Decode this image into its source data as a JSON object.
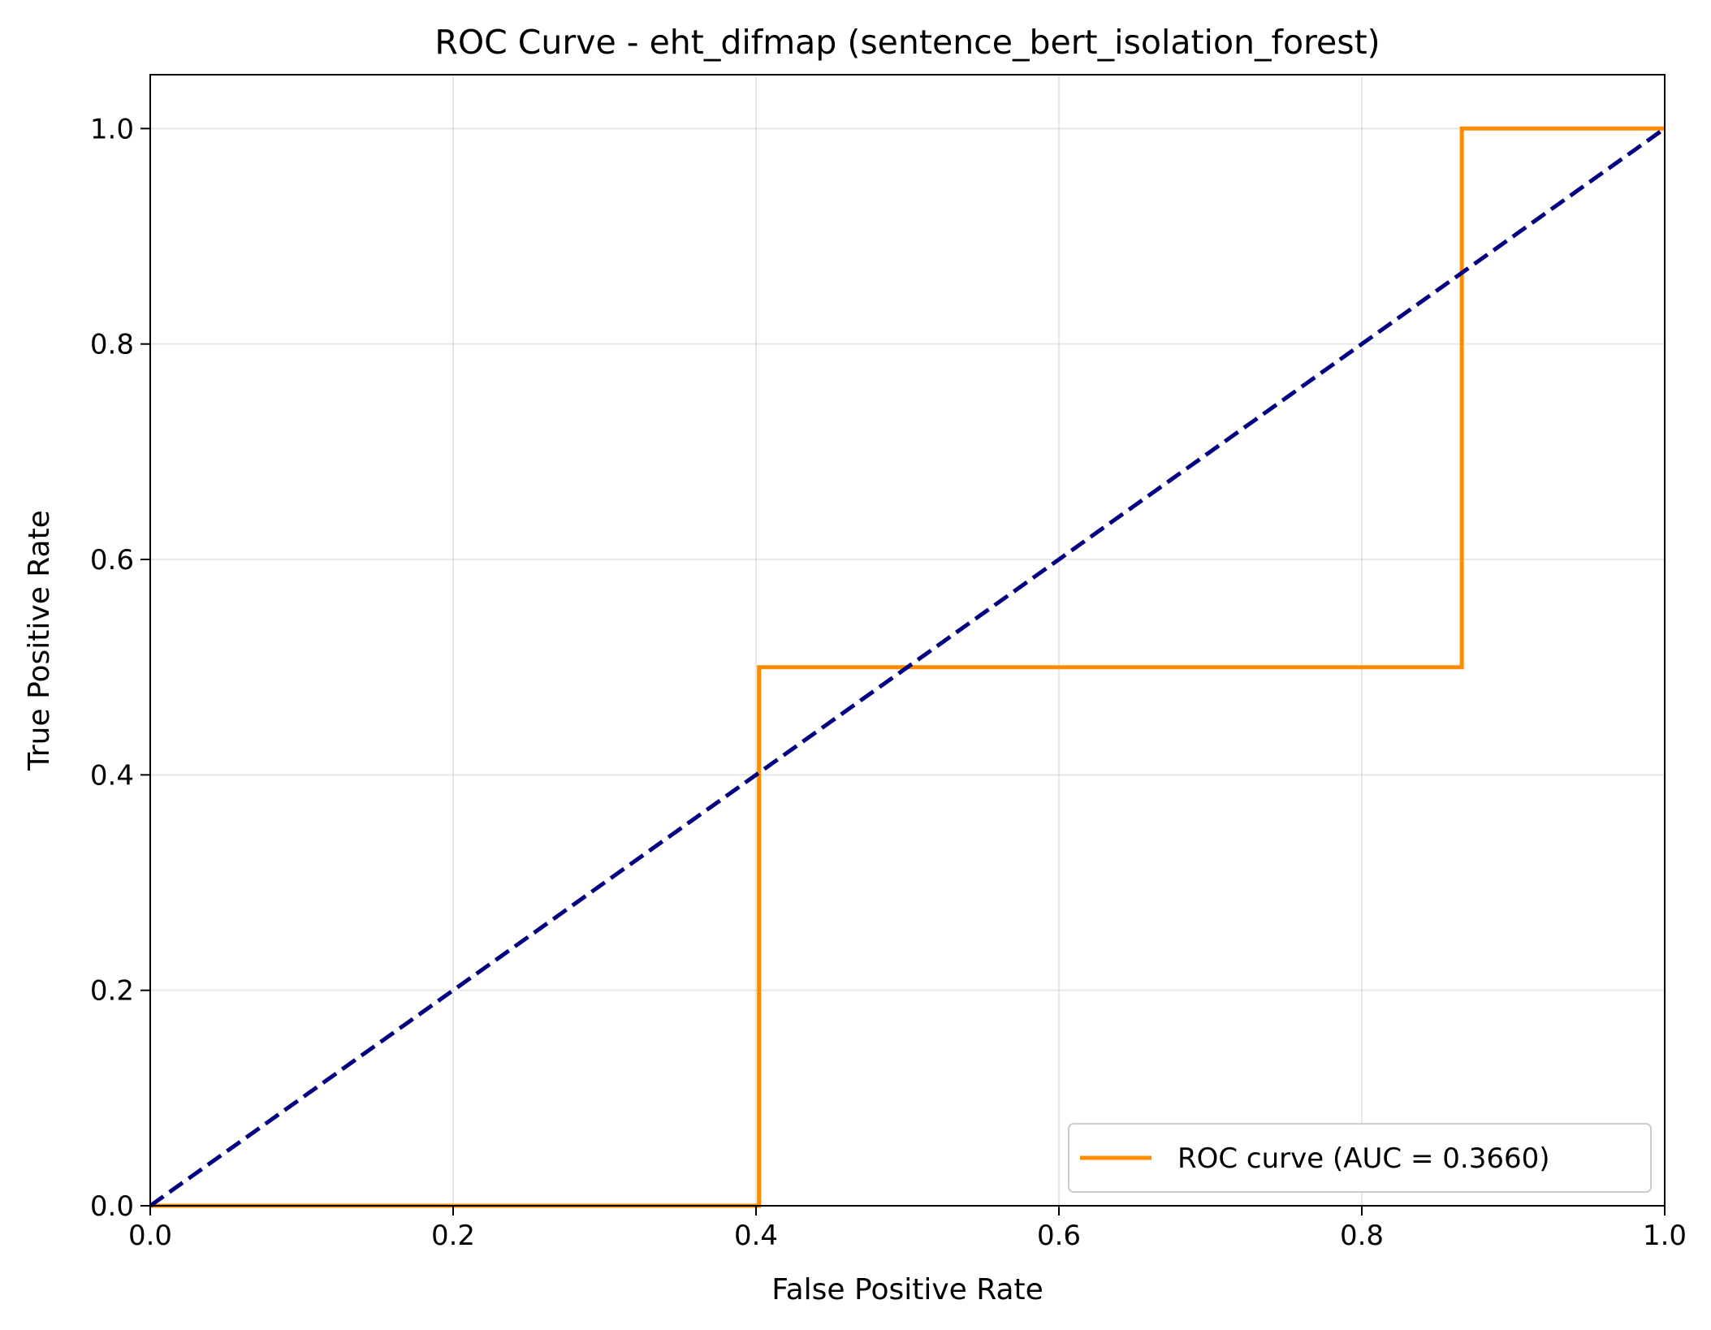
{
  "chart_data": {
    "type": "line",
    "title": "ROC Curve - eht_difmap (sentence_bert_isolation_forest)",
    "xlabel": "False Positive Rate",
    "ylabel": "True Positive Rate",
    "xlim": [
      0.0,
      1.0
    ],
    "ylim": [
      0.0,
      1.05
    ],
    "xticks": [
      0.0,
      0.2,
      0.4,
      0.6,
      0.8,
      1.0
    ],
    "yticks": [
      0.0,
      0.2,
      0.4,
      0.6,
      0.8,
      1.0
    ],
    "xtick_labels": [
      "0.0",
      "0.2",
      "0.4",
      "0.6",
      "0.8",
      "1.0"
    ],
    "ytick_labels": [
      "0.0",
      "0.2",
      "0.4",
      "0.6",
      "0.8",
      "1.0"
    ],
    "grid": true,
    "legend_position": "lower-right",
    "series": [
      {
        "name": "ROC curve (AUC = 0.3660)",
        "color": "#ff8c00",
        "style": "solid",
        "x": [
          0.0,
          0.402,
          0.402,
          0.866,
          0.866,
          1.0
        ],
        "y": [
          0.0,
          0.0,
          0.5,
          0.5,
          1.0,
          1.0
        ]
      },
      {
        "color": "#000080",
        "style": "dashed",
        "x": [
          0.0,
          1.0
        ],
        "y": [
          0.0,
          1.0
        ]
      }
    ]
  }
}
